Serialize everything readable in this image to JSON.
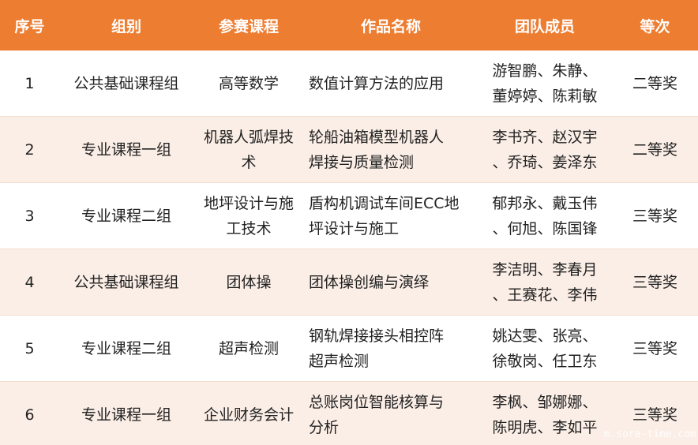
{
  "headers": [
    "序号",
    "组别",
    "参赛课程",
    "作品名称",
    "团队成员",
    "等次"
  ],
  "rows": [
    [
      "1",
      "公共基础课程组",
      "高等数学",
      "数值计算方法的应用",
      "游智鹏、朱静、\n董婷婷、陈莉敏",
      "二等奖"
    ],
    [
      "2",
      "专业课程一组",
      "机器人弧焊技\n术",
      "轮船油箱模型机器人\n焊接与质量检测",
      "李书齐、赵汉宇\n、乔琦、姜泽东",
      "二等奖"
    ],
    [
      "3",
      "专业课程二组",
      "地坪设计与施\n工技术",
      "盾构机调试车间ECC地\n坪设计与施工",
      "郁邦永、戴玉伟\n、何旭、陈国锋",
      "三等奖"
    ],
    [
      "4",
      "公共基础课程组",
      "团体操",
      "团体操创编与演绎",
      "李洁明、李春月\n、王赛花、李伟",
      "三等奖"
    ],
    [
      "5",
      "专业课程二组",
      "超声检测",
      "钢轨焊接接头相控阵\n超声检测",
      "姚达雯、张亮、\n徐敬岗、任卫东",
      "三等奖"
    ],
    [
      "6",
      "专业课程一组",
      "企业财务会计",
      "总账岗位智能核算与\n分析",
      "李枫、邹娜娜、\n陈明虎、李如平",
      "三等奖"
    ]
  ],
  "watermark": "m.sora-time.com",
  "colors": {
    "header": "#ED7D31",
    "alt_row": "#FBEEE6"
  }
}
